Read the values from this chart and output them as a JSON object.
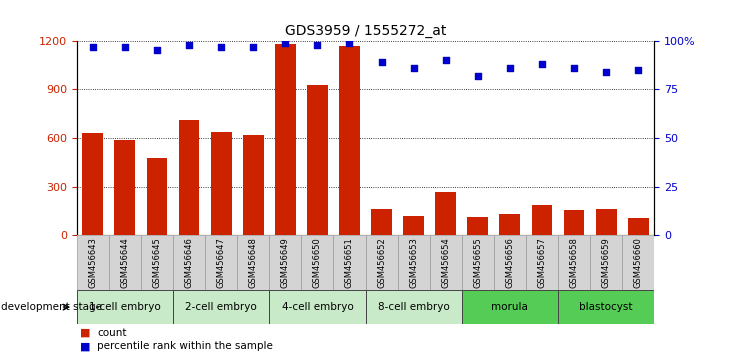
{
  "title": "GDS3959 / 1555272_at",
  "samples": [
    "GSM456643",
    "GSM456644",
    "GSM456645",
    "GSM456646",
    "GSM456647",
    "GSM456648",
    "GSM456649",
    "GSM456650",
    "GSM456651",
    "GSM456652",
    "GSM456653",
    "GSM456654",
    "GSM456655",
    "GSM456656",
    "GSM456657",
    "GSM456658",
    "GSM456659",
    "GSM456660"
  ],
  "counts": [
    630,
    590,
    480,
    710,
    640,
    620,
    1180,
    930,
    1170,
    160,
    120,
    270,
    115,
    130,
    185,
    155,
    160,
    110
  ],
  "percentiles": [
    97,
    97,
    95,
    98,
    97,
    97,
    99,
    98,
    99,
    89,
    86,
    90,
    82,
    86,
    88,
    86,
    84,
    85
  ],
  "stages": [
    {
      "label": "1-cell embryo",
      "start": 0,
      "end": 3
    },
    {
      "label": "2-cell embryo",
      "start": 3,
      "end": 6
    },
    {
      "label": "4-cell embryo",
      "start": 6,
      "end": 9
    },
    {
      "label": "8-cell embryo",
      "start": 9,
      "end": 12
    },
    {
      "label": "morula",
      "start": 12,
      "end": 15
    },
    {
      "label": "blastocyst",
      "start": 15,
      "end": 18
    }
  ],
  "stage_colors": [
    "#c8eac8",
    "#c8eac8",
    "#c8eac8",
    "#c8eac8",
    "#55cc55",
    "#55cc55"
  ],
  "bar_color": "#cc2200",
  "dot_color": "#0000cc",
  "ylim_left": [
    0,
    1200
  ],
  "ylim_right": [
    0,
    100
  ],
  "yticks_left": [
    0,
    300,
    600,
    900,
    1200
  ],
  "yticks_right": [
    0,
    25,
    50,
    75,
    100
  ],
  "grid_values": [
    300,
    600,
    900,
    1200
  ],
  "tick_label_color_left": "#cc2200",
  "tick_label_color_right": "#0000cc",
  "xtick_bg": "#d4d4d4",
  "dev_stage_label": "development stage",
  "legend_count": "count",
  "legend_pct": "percentile rank within the sample"
}
